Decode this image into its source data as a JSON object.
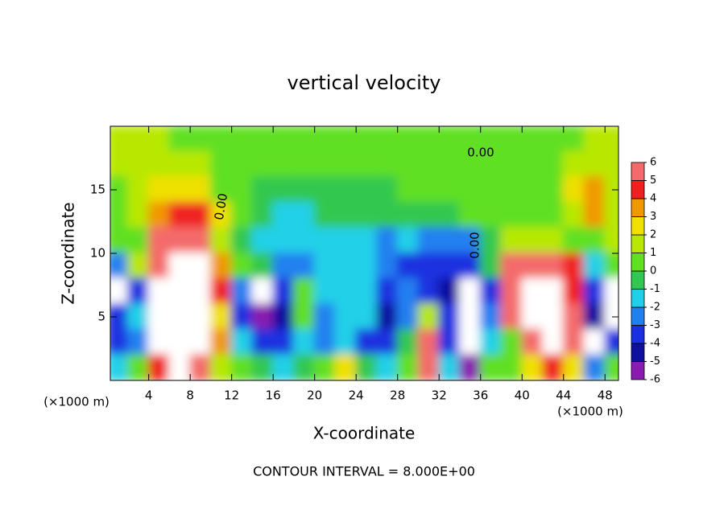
{
  "chart_data": {
    "type": "contour",
    "title": "vertical velocity",
    "xlabel": "X-coordinate",
    "ylabel": "Z-coordinate",
    "unit_labels": [
      "(×1000 m)",
      "(×1000 m)"
    ],
    "footer": "CONTOUR INTERVAL = 8.000E+00",
    "contour_labels": [
      "0.00",
      "0.00",
      "0.00"
    ],
    "xlim": [
      0.3,
      49.3
    ],
    "ylim": [
      0,
      20
    ],
    "xticks": [
      4,
      8,
      12,
      16,
      20,
      24,
      28,
      32,
      36,
      40,
      44,
      48
    ],
    "yticks": [
      5,
      10,
      15
    ],
    "x": [
      1,
      3,
      5,
      7,
      9,
      11,
      13,
      15,
      17,
      19,
      21,
      23,
      25,
      27,
      29,
      31,
      33,
      35,
      37,
      39,
      41,
      43,
      45,
      47,
      49
    ],
    "y": [
      19,
      17,
      15,
      13,
      11,
      9,
      7,
      5,
      3,
      1
    ],
    "z": [
      [
        1,
        1,
        1,
        0.5,
        0.5,
        0.5,
        0.5,
        0.5,
        0.5,
        0.5,
        0.5,
        0.5,
        0.5,
        0.5,
        0.5,
        0.5,
        0.5,
        0.5,
        0.5,
        0.5,
        0.5,
        0.5,
        0.5,
        1,
        1
      ],
      [
        1,
        1,
        1,
        1,
        1,
        0.5,
        0.5,
        0.5,
        0,
        0,
        0,
        0.5,
        0.5,
        0.5,
        0,
        0,
        0,
        0.5,
        0.5,
        0.5,
        0.5,
        0.5,
        1,
        1,
        1
      ],
      [
        0.5,
        1,
        2,
        2,
        2,
        0.5,
        0,
        -1,
        -1,
        -1,
        -1,
        -1,
        -0.5,
        -0.5,
        0,
        0,
        0,
        0,
        0.5,
        0.5,
        0.5,
        0.5,
        2,
        3,
        1
      ],
      [
        0.5,
        1,
        3,
        4,
        4,
        2,
        0,
        -1,
        -2,
        -2,
        -1,
        -1,
        -1,
        -1,
        -0.5,
        -0.5,
        -1,
        0,
        0,
        0,
        0.5,
        0.5,
        1,
        3,
        1
      ],
      [
        0,
        0,
        5,
        5,
        5,
        1,
        -1,
        -2,
        -2,
        -2,
        -2,
        -2,
        -2,
        -3,
        -2,
        -3,
        -3,
        -3,
        -1,
        1,
        1,
        1,
        0.5,
        0,
        1
      ],
      [
        -3,
        1,
        6,
        8,
        8,
        3,
        0,
        -1,
        -3,
        -3,
        -2,
        -2,
        -2,
        -3,
        -4,
        -4,
        -4,
        -4,
        -1,
        5,
        6,
        6,
        4,
        -2,
        0
      ],
      [
        -8,
        -4,
        8,
        8,
        8,
        4,
        -3,
        -8,
        -4,
        0,
        -2,
        -2,
        -2,
        -4,
        -3,
        -4,
        -5,
        -8,
        -4,
        5,
        8,
        8,
        4,
        -4,
        -8
      ],
      [
        -4,
        -2,
        8,
        8,
        8,
        2,
        -4,
        -6,
        -5,
        0,
        -3,
        -2,
        -2,
        -5,
        -3,
        1,
        -4,
        -8,
        -3,
        6,
        8,
        8,
        5,
        -5,
        -8
      ],
      [
        -4,
        -3,
        8,
        8,
        8,
        3,
        -2,
        -4,
        -4,
        -2,
        -3,
        -2,
        -4,
        -4,
        -1,
        5,
        -4,
        -8,
        -2,
        0,
        6,
        8,
        5,
        -8,
        -4
      ],
      [
        -2,
        0,
        4,
        8,
        6,
        1,
        0,
        -1,
        -2,
        -1,
        0,
        2,
        -1,
        -2,
        0,
        6,
        -2,
        -6,
        0,
        0,
        2,
        4,
        2,
        -3,
        0
      ]
    ],
    "colorbar": {
      "levels": [
        -6,
        -5,
        -4,
        -3,
        -2,
        -1,
        0,
        1,
        2,
        3,
        4,
        5,
        6
      ],
      "colors": [
        "#8a1ab0",
        "#1010a0",
        "#1a30e0",
        "#2080f0",
        "#20d0e8",
        "#30c850",
        "#60e020",
        "#b8e800",
        "#f0e000",
        "#f09800",
        "#f02020",
        "#f46a6a"
      ],
      "beyond_color": "#ffffff"
    }
  }
}
